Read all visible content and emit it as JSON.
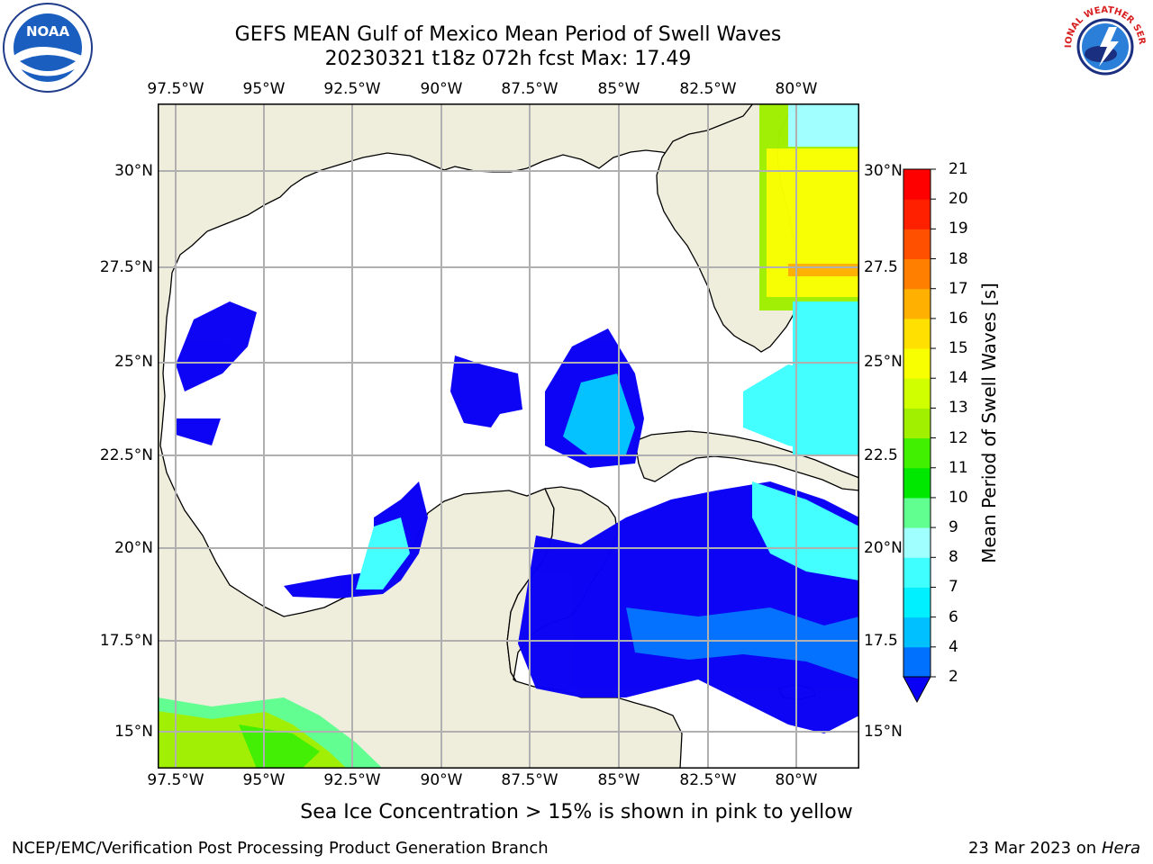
{
  "header": {
    "title": "GEFS MEAN Gulf of Mexico Mean Period of Swell Waves",
    "subtitle": "20230321 t18z 072h fcst   Max: 17.49"
  },
  "map": {
    "lon_labels": [
      "97.5°W",
      "95°W",
      "92.5°W",
      "90°W",
      "87.5°W",
      "85°W",
      "82.5°W",
      "80°W"
    ],
    "lat_labels_left": [
      "30°N",
      "27.5°N",
      "25°N",
      "22.5°N",
      "20°N",
      "17.5°N",
      "15°N"
    ],
    "lat_labels_right": [
      "30°N",
      "27.5",
      "25°N",
      "22.5",
      "20°N",
      "17.5",
      "15°N"
    ]
  },
  "colorbar": {
    "title": "Mean Period of Swell Waves [s]",
    "levels": [
      "2",
      "4",
      "6",
      "7",
      "8",
      "9",
      "10",
      "11",
      "12",
      "13",
      "14",
      "15",
      "16",
      "17",
      "18",
      "19",
      "20",
      "21"
    ],
    "colors": [
      "#0a00f5",
      "#0070ff",
      "#00c0ff",
      "#00f0ff",
      "#40ffff",
      "#a0ffff",
      "#60ff90",
      "#00e800",
      "#40f000",
      "#a0f000",
      "#d0ff00",
      "#f8ff00",
      "#ffe000",
      "#ffb000",
      "#ff8000",
      "#ff5000",
      "#ff2000",
      "#ff0000"
    ]
  },
  "colors": {
    "land": "#efeedc",
    "ocean": "#ffffff",
    "coast": "#000000",
    "grid": "#b0b0b0"
  },
  "note": "Sea Ice Concentration > 15% is shown in pink to yellow",
  "footer": {
    "left": "NCEP/EMC/Verification Post Processing Product Generation Branch",
    "right_date": "23 Mar 2023 on",
    "right_host": "Hera"
  },
  "logos": {
    "noaa_text": "NOAA",
    "nws_text": "NATIONAL WEATHER SERVICE"
  }
}
